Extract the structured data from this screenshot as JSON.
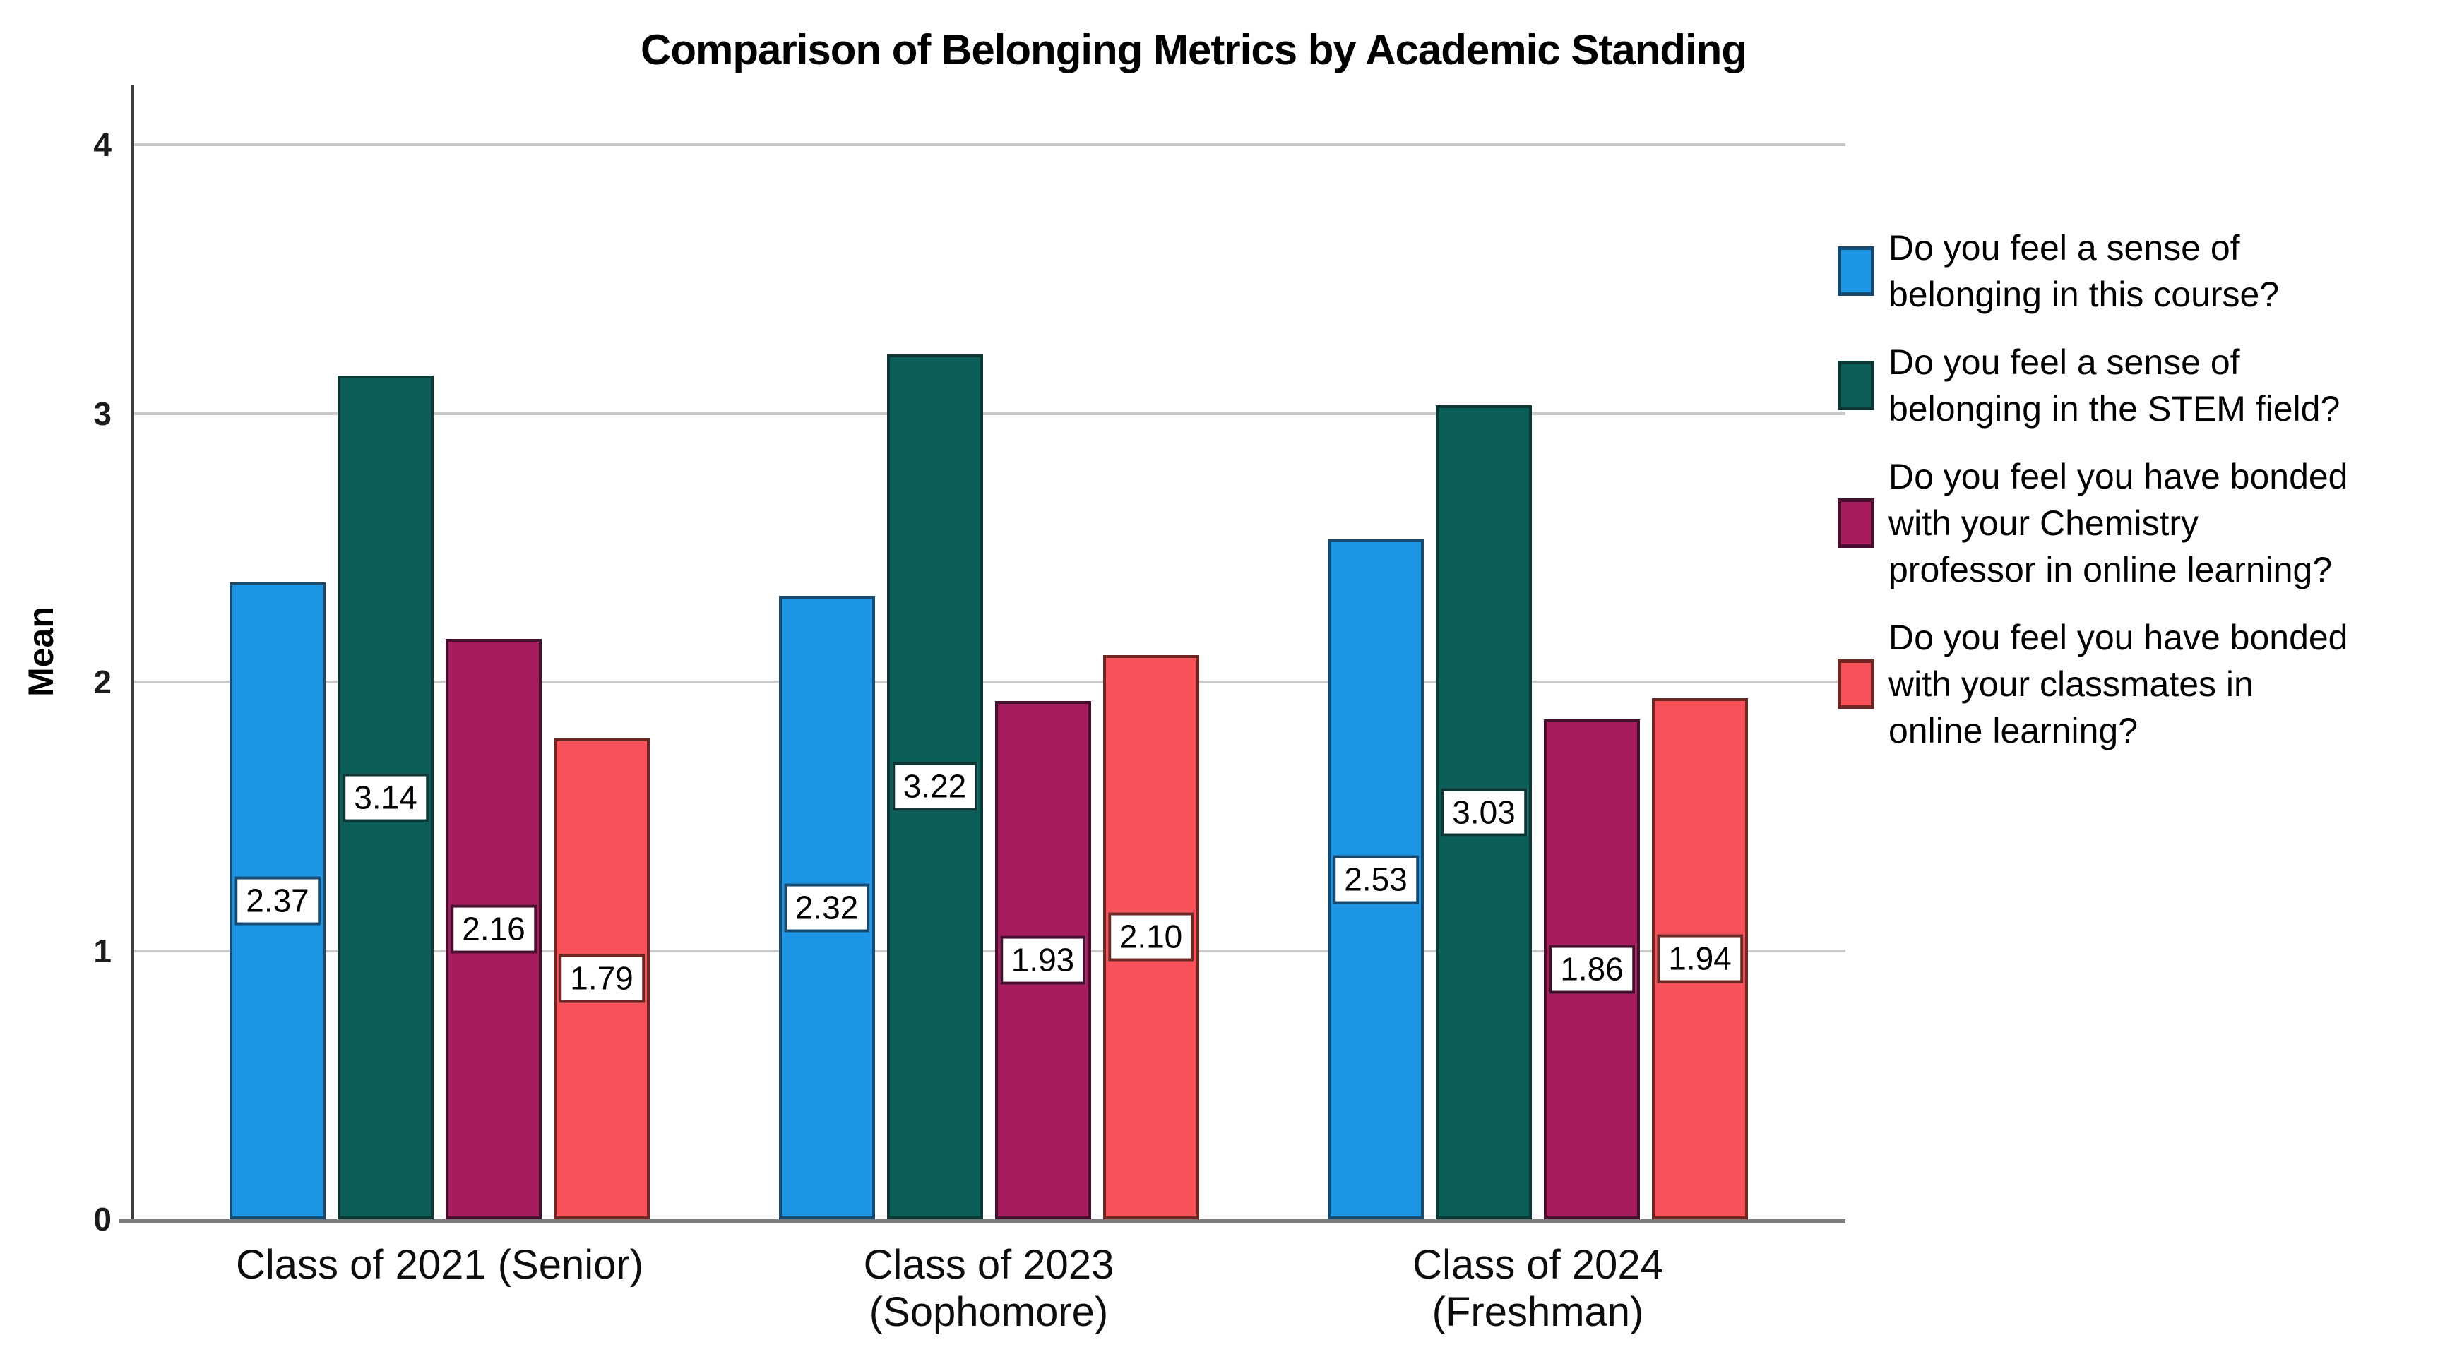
{
  "chart_data": {
    "type": "bar",
    "title": "Comparison of Belonging Metrics by Academic Standing",
    "xlabel": "",
    "ylabel": "Mean",
    "ylim": [
      0,
      4
    ],
    "yticks": [
      0,
      1,
      2,
      3,
      4
    ],
    "grid": "horizontal",
    "legend_position": "right",
    "value_labels_shown": true,
    "categories": [
      "Class of 2021 (Senior)",
      "Class of 2023\n(Sophomore)",
      "Class of 2024\n(Freshman)"
    ],
    "series": [
      {
        "name": "Do you feel a sense of\nbelonging in this course?",
        "fill": "#1B95E4",
        "border": "#174A70",
        "values": [
          2.37,
          2.32,
          2.53
        ]
      },
      {
        "name": "Do you feel a sense of\nbelonging in the STEM field?",
        "fill": "#0C5F58",
        "border": "#0C3734",
        "values": [
          3.14,
          3.22,
          3.03
        ]
      },
      {
        "name": "Do you feel you have bonded\nwith your Chemistry\nprofessor in online learning?",
        "fill": "#A71C5D",
        "border": "#470F2F",
        "values": [
          2.16,
          1.93,
          1.86
        ]
      },
      {
        "name": "Do you feel you have bonded\nwith your classmates in\nonline learning?",
        "fill": "#F7525A",
        "border": "#6F2723",
        "values": [
          1.79,
          2.1,
          1.94
        ]
      }
    ],
    "colors": {
      "gridline": "#C9C9C9",
      "y_axis_line": "#3E3E3E",
      "x_axis_line": "#7C7C7C",
      "label_box_bg": "#FFFFFF",
      "text": "#000000"
    }
  }
}
